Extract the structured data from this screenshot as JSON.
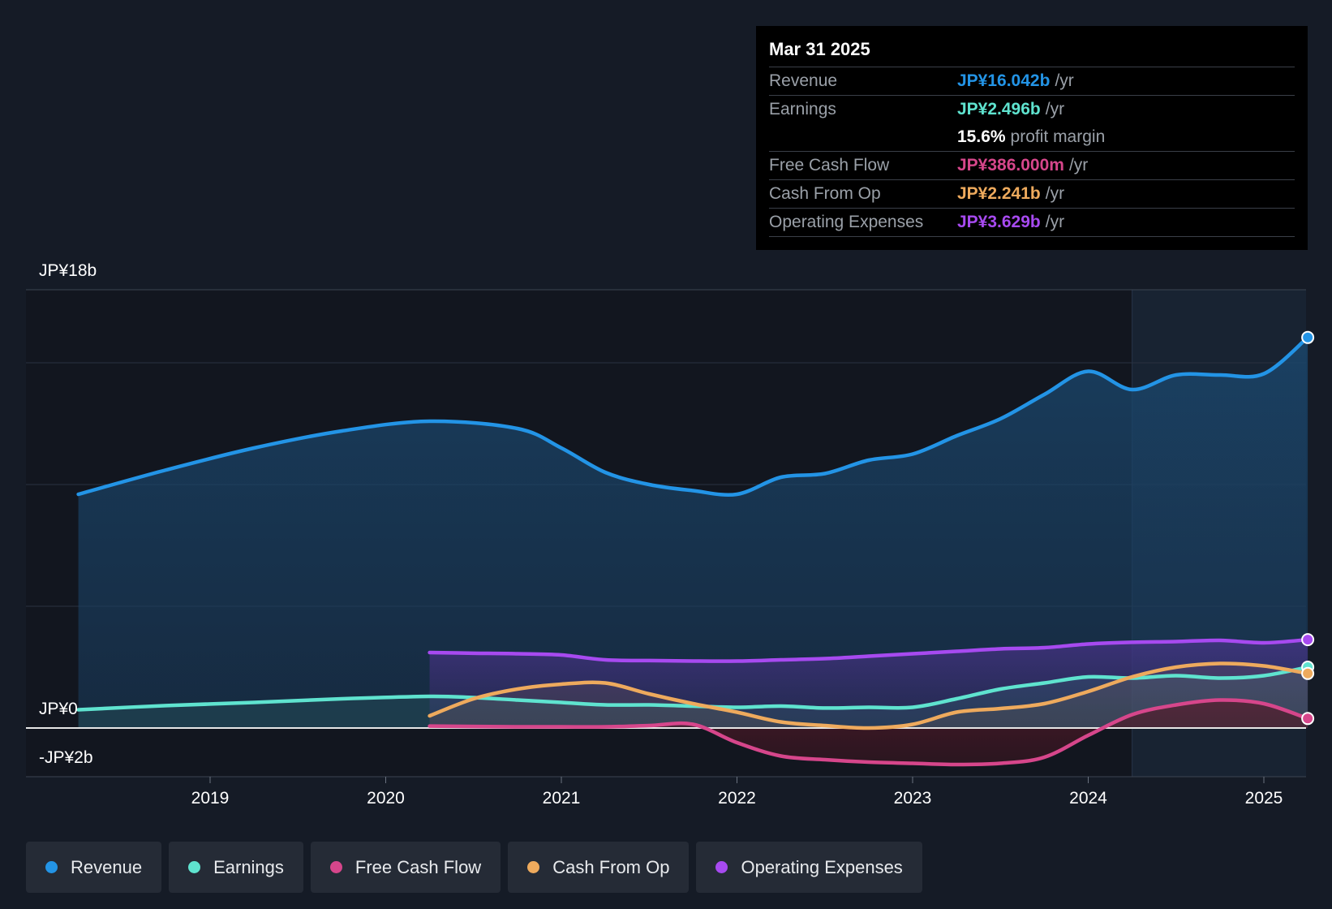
{
  "tooltip": {
    "date": "Mar 31 2025",
    "rows": [
      {
        "label": "Revenue",
        "value": "JP¥16.042b",
        "unit": "/yr",
        "color": "#2394e6"
      },
      {
        "label": "Earnings",
        "value": "JP¥2.496b",
        "unit": "/yr",
        "color": "#5fe3cf"
      },
      {
        "label": "",
        "value": "15.6%",
        "unit": "profit margin",
        "color": "#ffffff"
      },
      {
        "label": "Free Cash Flow",
        "value": "JP¥386.000m",
        "unit": "/yr",
        "color": "#d6468b"
      },
      {
        "label": "Cash From Op",
        "value": "JP¥2.241b",
        "unit": "/yr",
        "color": "#eeaa5d"
      },
      {
        "label": "Operating Expenses",
        "value": "JP¥3.629b",
        "unit": "/yr",
        "color": "#a74af0"
      }
    ]
  },
  "legend": [
    {
      "label": "Revenue",
      "color": "#2394e6"
    },
    {
      "label": "Earnings",
      "color": "#5fe3cf"
    },
    {
      "label": "Free Cash Flow",
      "color": "#d6468b"
    },
    {
      "label": "Cash From Op",
      "color": "#eeaa5d"
    },
    {
      "label": "Operating Expenses",
      "color": "#a74af0"
    }
  ],
  "chart_data": {
    "type": "line",
    "title": "",
    "xlabel": "",
    "ylabel": "",
    "ylim": [
      -2,
      18
    ],
    "y_axis_labels": [
      "JP¥18b",
      "JP¥0",
      "-JP¥2b"
    ],
    "x_ticks": [
      2019,
      2020,
      2021,
      2022,
      2023,
      2024,
      2025
    ],
    "x_tick_labels": [
      "2019",
      "2020",
      "2021",
      "2022",
      "2023",
      "2024",
      "2025"
    ],
    "highlight_start": 2024.25,
    "series": [
      {
        "name": "Revenue",
        "color": "#2394e6",
        "points": [
          [
            2018.25,
            9.6
          ],
          [
            2018.75,
            10.6
          ],
          [
            2019.25,
            11.5
          ],
          [
            2019.75,
            12.2
          ],
          [
            2020.25,
            12.6
          ],
          [
            2020.75,
            12.3
          ],
          [
            2021.0,
            11.5
          ],
          [
            2021.25,
            10.5
          ],
          [
            2021.5,
            10.0
          ],
          [
            2021.75,
            9.75
          ],
          [
            2022.0,
            9.6
          ],
          [
            2022.25,
            10.3
          ],
          [
            2022.5,
            10.45
          ],
          [
            2022.75,
            11.0
          ],
          [
            2023.0,
            11.25
          ],
          [
            2023.25,
            12.0
          ],
          [
            2023.5,
            12.7
          ],
          [
            2023.75,
            13.7
          ],
          [
            2024.0,
            14.65
          ],
          [
            2024.25,
            13.9
          ],
          [
            2024.5,
            14.5
          ],
          [
            2024.75,
            14.5
          ],
          [
            2025.0,
            14.55
          ],
          [
            2025.25,
            16.04
          ]
        ]
      },
      {
        "name": "Operating Expenses",
        "color": "#a74af0",
        "points": [
          [
            2020.25,
            3.1
          ],
          [
            2020.5,
            3.07
          ],
          [
            2020.75,
            3.05
          ],
          [
            2021.0,
            3.0
          ],
          [
            2021.25,
            2.8
          ],
          [
            2021.5,
            2.77
          ],
          [
            2021.75,
            2.75
          ],
          [
            2022.0,
            2.75
          ],
          [
            2022.25,
            2.8
          ],
          [
            2022.5,
            2.85
          ],
          [
            2022.75,
            2.95
          ],
          [
            2023.0,
            3.05
          ],
          [
            2023.25,
            3.15
          ],
          [
            2023.5,
            3.25
          ],
          [
            2023.75,
            3.3
          ],
          [
            2024.0,
            3.45
          ],
          [
            2024.25,
            3.52
          ],
          [
            2024.5,
            3.55
          ],
          [
            2024.75,
            3.6
          ],
          [
            2025.0,
            3.5
          ],
          [
            2025.25,
            3.63
          ]
        ]
      },
      {
        "name": "Earnings",
        "color": "#5fe3cf",
        "points": [
          [
            2018.25,
            0.75
          ],
          [
            2018.75,
            0.92
          ],
          [
            2019.25,
            1.05
          ],
          [
            2019.75,
            1.2
          ],
          [
            2020.25,
            1.3
          ],
          [
            2020.5,
            1.25
          ],
          [
            2020.75,
            1.15
          ],
          [
            2021.0,
            1.05
          ],
          [
            2021.25,
            0.95
          ],
          [
            2021.5,
            0.95
          ],
          [
            2021.75,
            0.9
          ],
          [
            2022.0,
            0.85
          ],
          [
            2022.25,
            0.9
          ],
          [
            2022.5,
            0.82
          ],
          [
            2022.75,
            0.85
          ],
          [
            2023.0,
            0.85
          ],
          [
            2023.25,
            1.2
          ],
          [
            2023.5,
            1.6
          ],
          [
            2023.75,
            1.85
          ],
          [
            2024.0,
            2.1
          ],
          [
            2024.25,
            2.05
          ],
          [
            2024.5,
            2.15
          ],
          [
            2024.75,
            2.05
          ],
          [
            2025.0,
            2.15
          ],
          [
            2025.25,
            2.5
          ]
        ]
      },
      {
        "name": "Cash From Op",
        "color": "#eeaa5d",
        "points": [
          [
            2020.25,
            0.5
          ],
          [
            2020.5,
            1.2
          ],
          [
            2020.75,
            1.6
          ],
          [
            2021.0,
            1.8
          ],
          [
            2021.25,
            1.85
          ],
          [
            2021.5,
            1.4
          ],
          [
            2021.75,
            1.0
          ],
          [
            2022.0,
            0.65
          ],
          [
            2022.25,
            0.25
          ],
          [
            2022.5,
            0.1
          ],
          [
            2022.75,
            0.0
          ],
          [
            2023.0,
            0.15
          ],
          [
            2023.25,
            0.65
          ],
          [
            2023.5,
            0.8
          ],
          [
            2023.75,
            1.0
          ],
          [
            2024.0,
            1.5
          ],
          [
            2024.25,
            2.1
          ],
          [
            2024.5,
            2.5
          ],
          [
            2024.75,
            2.65
          ],
          [
            2025.0,
            2.55
          ],
          [
            2025.25,
            2.24
          ]
        ]
      },
      {
        "name": "Free Cash Flow",
        "color": "#d6468b",
        "points": [
          [
            2020.25,
            0.08
          ],
          [
            2020.75,
            0.05
          ],
          [
            2021.0,
            0.05
          ],
          [
            2021.25,
            0.05
          ],
          [
            2021.5,
            0.1
          ],
          [
            2021.75,
            0.15
          ],
          [
            2022.0,
            -0.6
          ],
          [
            2022.25,
            -1.15
          ],
          [
            2022.5,
            -1.3
          ],
          [
            2022.75,
            -1.4
          ],
          [
            2023.0,
            -1.45
          ],
          [
            2023.25,
            -1.5
          ],
          [
            2023.5,
            -1.45
          ],
          [
            2023.75,
            -1.2
          ],
          [
            2024.0,
            -0.3
          ],
          [
            2024.25,
            0.55
          ],
          [
            2024.5,
            0.95
          ],
          [
            2024.75,
            1.15
          ],
          [
            2025.0,
            1.0
          ],
          [
            2025.25,
            0.39
          ]
        ]
      }
    ]
  }
}
